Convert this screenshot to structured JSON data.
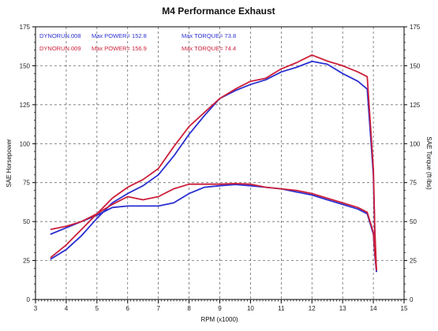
{
  "chart_data": {
    "type": "line",
    "title": "M4 Performance Exhaust",
    "xlabel": "RPM (x1000)",
    "ylabel_left": "SAE Horsepower",
    "ylabel_right": "SAE Torque (ft-lbs)",
    "xlim": [
      3,
      15
    ],
    "ylim": [
      0,
      175
    ],
    "xticks": [
      "3",
      "4",
      "5",
      "6",
      "7",
      "8",
      "9",
      "10",
      "11",
      "12",
      "13",
      "14",
      "15"
    ],
    "yticks_left": [
      "0",
      "25",
      "50",
      "75",
      "100",
      "125",
      "150",
      "175"
    ],
    "yticks_right": [
      "0",
      "25",
      "50",
      "75",
      "100",
      "125",
      "150",
      "175"
    ],
    "grid": true,
    "legend": [
      {
        "run": "DYNORUN.008",
        "power": "Max POWER= 152.8",
        "torque": "Max TORQUE= 73.8",
        "color": "#2a2fd0"
      },
      {
        "run": "DYNORUN.009",
        "power": "Max POWER= 156.9",
        "torque": "Max TORQUE= 74.4",
        "color": "#cc1f3a"
      }
    ],
    "series": [
      {
        "name": "DYNORUN.008",
        "color": "#2a2fd0",
        "x": [
          3.5,
          4,
          4.5,
          5,
          5.5,
          6,
          6.5,
          7,
          7.5,
          8,
          8.5,
          9,
          9.5,
          10,
          10.5,
          11,
          11.5,
          12,
          12.5,
          13,
          13.5,
          13.8,
          14,
          14.05,
          14.1
        ],
        "y": [
          26,
          32,
          41,
          52,
          62,
          68,
          73,
          80,
          92,
          106,
          118,
          129,
          134,
          138,
          141,
          146,
          149,
          152.8,
          151,
          145,
          140,
          135,
          80,
          40,
          18
        ]
      },
      {
        "name": "DYNORUN.008",
        "color": "#2a2fd0",
        "x": [
          3.5,
          4,
          4.5,
          5,
          5.5,
          6,
          6.5,
          7,
          7.5,
          8,
          8.5,
          9,
          9.5,
          10,
          10.5,
          11,
          11.5,
          12,
          12.5,
          13,
          13.5,
          13.8,
          14,
          14.05,
          14.1
        ],
        "y": [
          42,
          46,
          50,
          54,
          59,
          60,
          60,
          60,
          62,
          68,
          72,
          73,
          73.8,
          73,
          72,
          71,
          69,
          67,
          64,
          61,
          58,
          55,
          42,
          28,
          18
        ]
      },
      {
        "name": "DYNORUN.009",
        "color": "#cc1f3a",
        "x": [
          3.5,
          4,
          4.5,
          5,
          5.5,
          6,
          6.5,
          7,
          7.5,
          8,
          8.5,
          9,
          9.5,
          10,
          10.5,
          11,
          11.5,
          12,
          12.5,
          13,
          13.5,
          13.8,
          14,
          14.05,
          14.1
        ],
        "y": [
          27,
          35,
          45,
          55,
          65,
          72,
          77,
          84,
          98,
          111,
          120,
          129,
          135,
          140,
          142,
          148,
          152,
          156.9,
          153,
          150,
          146,
          143,
          84,
          44,
          19
        ]
      },
      {
        "name": "DYNORUN.009",
        "color": "#cc1f3a",
        "x": [
          3.5,
          4,
          4.5,
          5,
          5.5,
          6,
          6.5,
          7,
          7.5,
          8,
          8.5,
          9,
          9.5,
          10,
          10.5,
          11,
          11.5,
          12,
          12.5,
          13,
          13.5,
          13.8,
          14,
          14.05,
          14.1
        ],
        "y": [
          45,
          47,
          50,
          55,
          61,
          66,
          64,
          66,
          71,
          74,
          74,
          74,
          74.4,
          74,
          72,
          71,
          70,
          68,
          65,
          62,
          59,
          56,
          43,
          30,
          19
        ]
      }
    ]
  }
}
